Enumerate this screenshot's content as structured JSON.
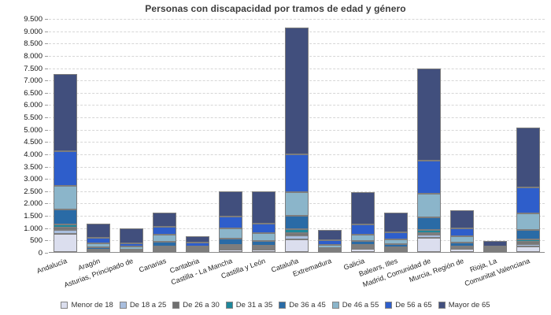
{
  "chart_data": {
    "type": "bar",
    "variant": "stacked-vertical",
    "title": "Personas con discapacidad por tramos de edad y género",
    "xlabel": "",
    "ylabel": "",
    "ylim": [
      0,
      9500
    ],
    "ytick_step": 500,
    "grid": "horizontal-dashed",
    "legend_position": "bottom",
    "bar_border_color": "#7d7d7d",
    "categories": [
      "Andalucía",
      "Aragón",
      "Asturias, Principado de",
      "Canarias",
      "Cantabria",
      "Castilla - La Mancha",
      "Castilla y León",
      "Cataluña",
      "Extremadura",
      "Galicia",
      "Balears, Illes",
      "Madrid, Comunidad de",
      "Murcia, Región de",
      "Rioja, La",
      "Comunitat Valenciana"
    ],
    "series": [
      {
        "name": "Menor de 18",
        "color": "#dbdeee",
        "values": [
          740,
          25,
          20,
          80,
          30,
          105,
          85,
          500,
          40,
          130,
          65,
          590,
          125,
          20,
          230
        ]
      },
      {
        "name": "De 18 a 25",
        "color": "#a9bede",
        "values": [
          160,
          20,
          15,
          45,
          20,
          65,
          50,
          160,
          20,
          55,
          40,
          100,
          35,
          10,
          85
        ]
      },
      {
        "name": "De 26 a 30",
        "color": "#707070",
        "values": [
          100,
          20,
          15,
          45,
          20,
          45,
          55,
          100,
          25,
          40,
          40,
          90,
          30,
          10,
          95
        ]
      },
      {
        "name": "De 31 a 35",
        "color": "#1e879b",
        "values": [
          130,
          30,
          20,
          60,
          25,
          65,
          55,
          160,
          25,
          55,
          45,
          120,
          40,
          15,
          90
        ]
      },
      {
        "name": "De 36 a 45",
        "color": "#2a6ba6",
        "values": [
          600,
          95,
          40,
          190,
          60,
          265,
          205,
          550,
          60,
          180,
          130,
          510,
          155,
          40,
          390
        ]
      },
      {
        "name": "De 46 a 55",
        "color": "#8bb5ca",
        "values": [
          960,
          160,
          105,
          270,
          80,
          420,
          320,
          950,
          130,
          255,
          190,
          960,
          245,
          60,
          670
        ]
      },
      {
        "name": "De 56 a 65",
        "color": "#2e5ecb",
        "values": [
          1400,
          225,
          145,
          350,
          150,
          480,
          385,
          1550,
          175,
          390,
          290,
          1330,
          345,
          85,
          1050
        ]
      },
      {
        "name": "Mayor de 65",
        "color": "#414f7d",
        "values": [
          3150,
          580,
          590,
          560,
          265,
          1020,
          1310,
          5150,
          425,
          1330,
          800,
          3750,
          725,
          210,
          2440
        ]
      }
    ],
    "totals": [
      7240,
      1155,
      950,
      1600,
      650,
      2465,
      2465,
      9120,
      900,
      2435,
      1600,
      7450,
      1700,
      450,
      5050
    ]
  }
}
